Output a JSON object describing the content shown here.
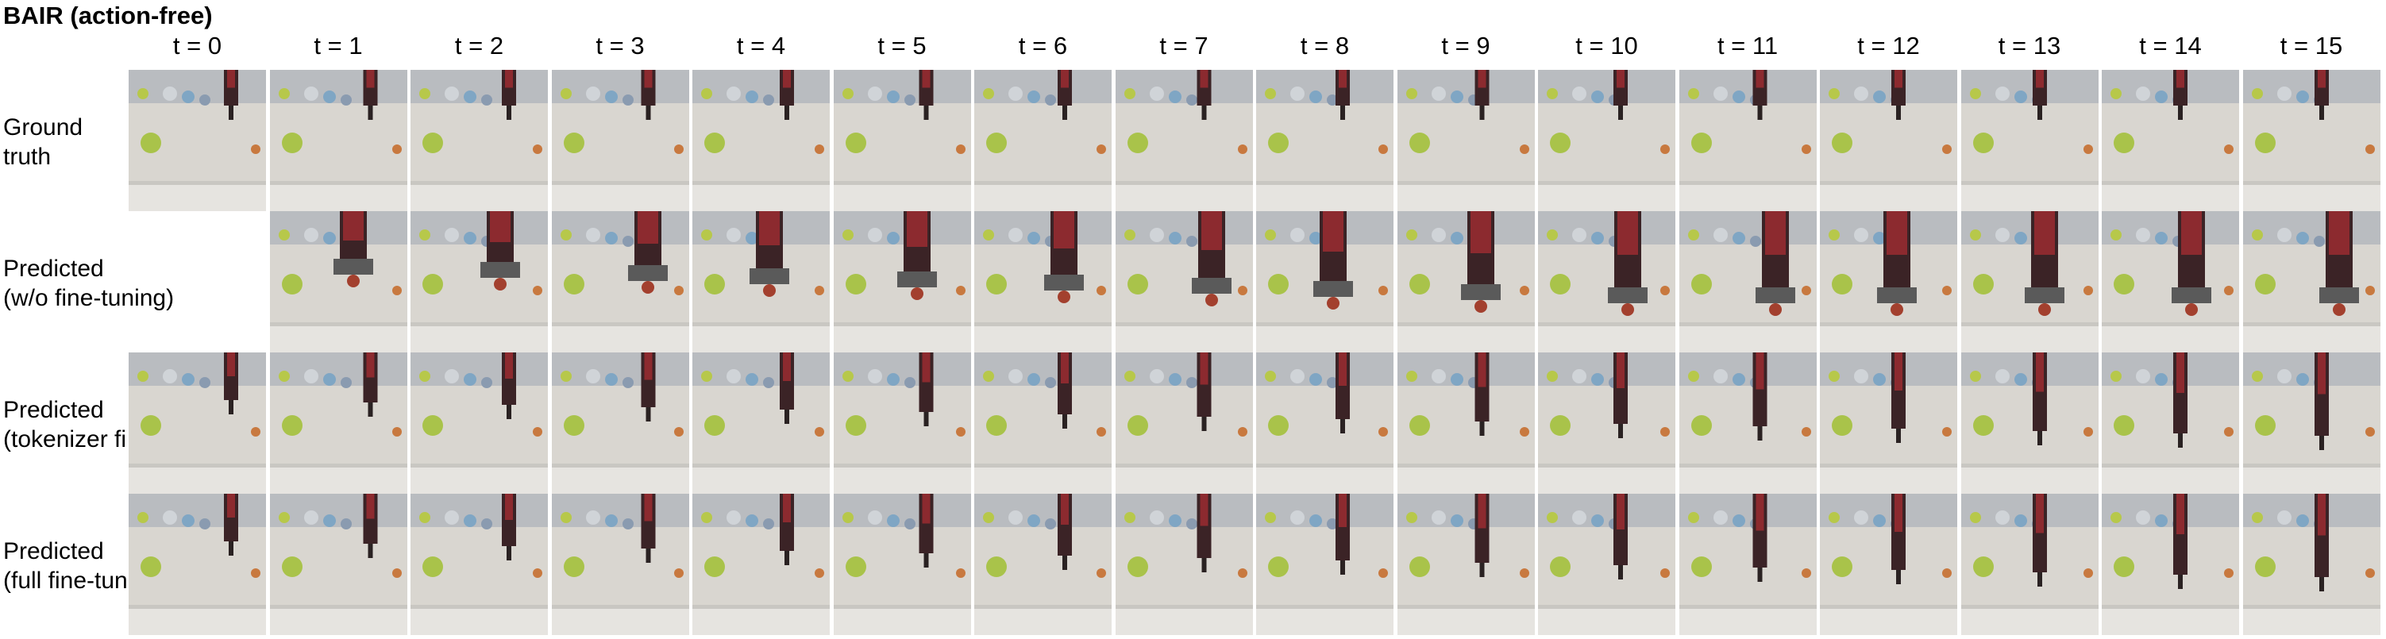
{
  "title": "BAIR (action-free)",
  "time_labels": [
    "t = 0",
    "t = 1",
    "t = 2",
    "t = 3",
    "t = 4",
    "t = 5",
    "t = 6",
    "t = 7",
    "t = 8",
    "t = 9",
    "t = 10",
    "t = 11",
    "t = 12",
    "t = 13",
    "t = 14",
    "t = 15"
  ],
  "rows": [
    {
      "label_lines": [
        "Ground",
        "truth"
      ],
      "start_frame": 0,
      "arm": "far"
    },
    {
      "label_lines": [
        "Predicted",
        "(w/o fine-tuning)"
      ],
      "start_frame": 1,
      "arm": "near"
    },
    {
      "label_lines": [
        "Predicted",
        "(tokenizer fine-tuned)"
      ],
      "start_frame": 0,
      "arm": "mid"
    },
    {
      "label_lines": [
        "Predicted",
        "(full fine-tuned)"
      ],
      "start_frame": 0,
      "arm": "mid"
    }
  ]
}
